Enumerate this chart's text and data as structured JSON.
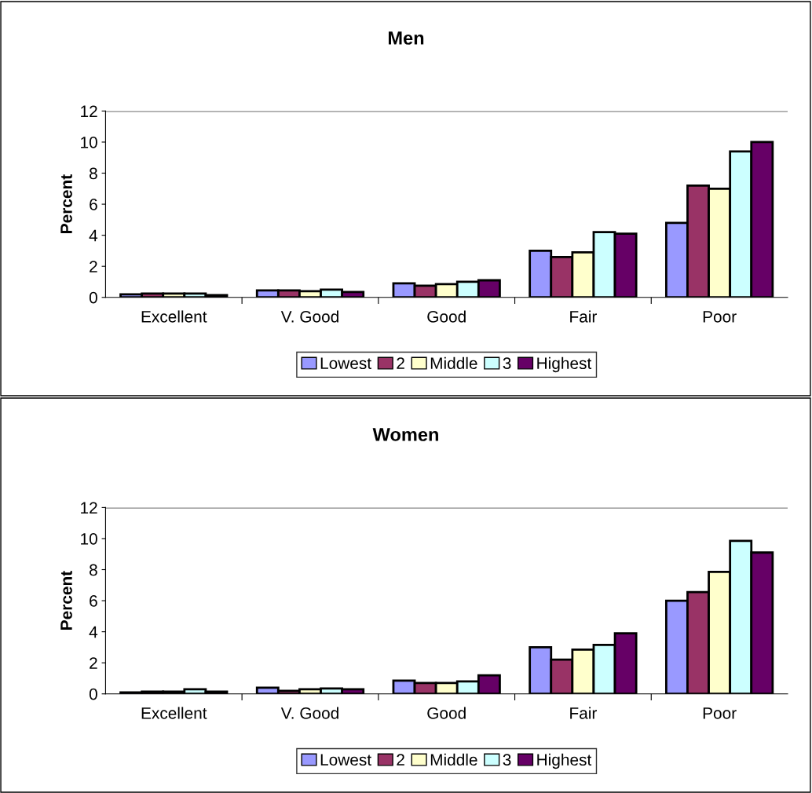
{
  "chart_data": [
    {
      "type": "bar",
      "title": "Men",
      "ylabel": "Percent",
      "categories": [
        "Excellent",
        "V. Good",
        "Good",
        "Fair",
        "Poor"
      ],
      "ylim": [
        0,
        12
      ],
      "yticks": [
        0,
        2,
        4,
        6,
        8,
        10,
        12
      ],
      "grid": false,
      "legend": "bottom",
      "series": [
        {
          "name": "Lowest",
          "color": "#9999ff",
          "values": [
            0.2,
            0.45,
            0.9,
            3.0,
            4.8
          ]
        },
        {
          "name": "2",
          "color": "#993366",
          "values": [
            0.25,
            0.45,
            0.75,
            2.6,
            7.2
          ]
        },
        {
          "name": "Middle",
          "color": "#ffffcc",
          "values": [
            0.25,
            0.4,
            0.85,
            2.9,
            7.0
          ]
        },
        {
          "name": "3",
          "color": "#ccffff",
          "values": [
            0.25,
            0.5,
            1.0,
            4.2,
            9.4
          ]
        },
        {
          "name": "Highest",
          "color": "#660066",
          "values": [
            0.15,
            0.35,
            1.1,
            4.1,
            10.0
          ]
        }
      ]
    },
    {
      "type": "bar",
      "title": "Women",
      "ylabel": "Percent",
      "categories": [
        "Excellent",
        "V. Good",
        "Good",
        "Fair",
        "Poor"
      ],
      "ylim": [
        0,
        12
      ],
      "yticks": [
        0,
        2,
        4,
        6,
        8,
        10,
        12
      ],
      "grid": false,
      "legend": "bottom",
      "series": [
        {
          "name": "Lowest",
          "color": "#9999ff",
          "values": [
            0.1,
            0.4,
            0.85,
            3.0,
            6.0
          ]
        },
        {
          "name": "2",
          "color": "#993366",
          "values": [
            0.15,
            0.2,
            0.7,
            2.2,
            6.55
          ]
        },
        {
          "name": "Middle",
          "color": "#ffffcc",
          "values": [
            0.15,
            0.3,
            0.7,
            2.85,
            7.85
          ]
        },
        {
          "name": "3",
          "color": "#ccffff",
          "values": [
            0.3,
            0.35,
            0.8,
            3.15,
            9.85
          ]
        },
        {
          "name": "Highest",
          "color": "#660066",
          "values": [
            0.15,
            0.3,
            1.2,
            3.9,
            9.1
          ]
        }
      ]
    }
  ]
}
